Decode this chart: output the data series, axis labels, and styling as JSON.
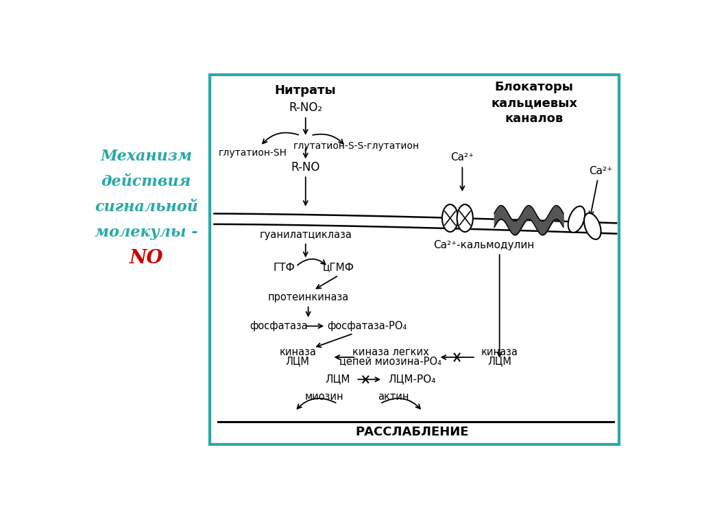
{
  "bg_color": "#ffffff",
  "box_color": "#2aa8a8",
  "left_title_lines": [
    "Механизм",
    "действия",
    "сигнальной",
    "молекулы -"
  ],
  "left_title_NO": "NO",
  "left_title_color": "#2aa8a8",
  "left_title_NO_color": "#cc0000"
}
